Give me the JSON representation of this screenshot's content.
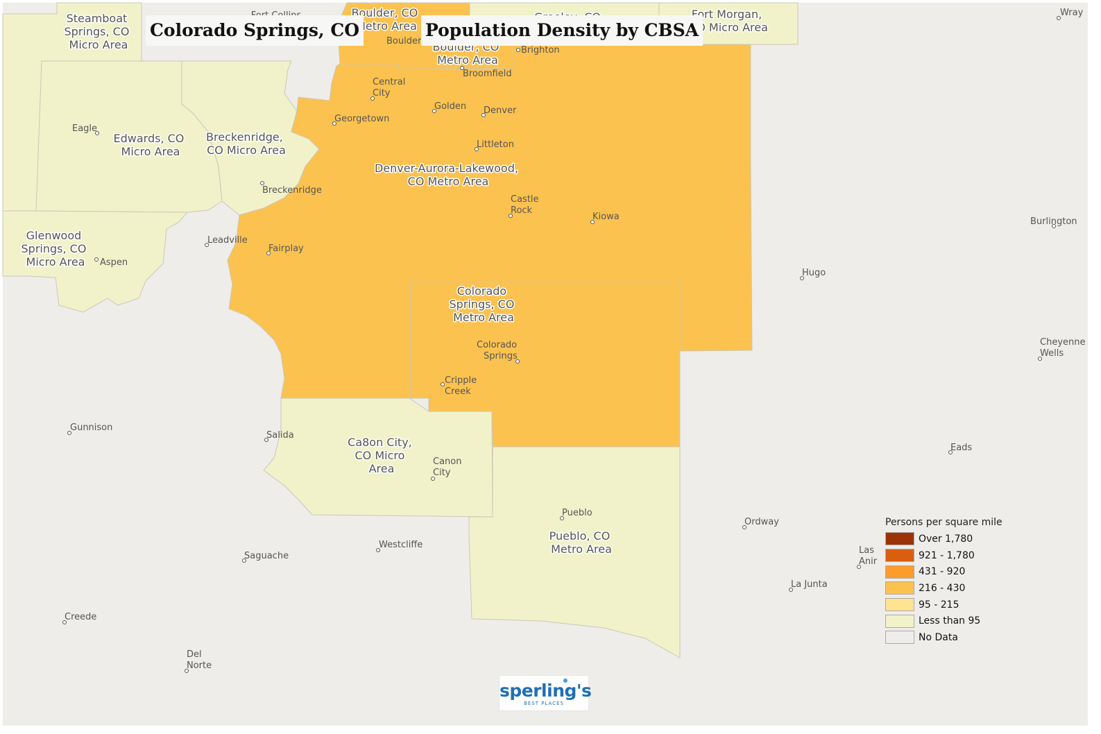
{
  "titles": {
    "location": "Colorado Springs, CO",
    "map_title": "Population Density by CBSA"
  },
  "colors": {
    "background": "#efedea",
    "no_data": "#efedea",
    "over_1780": "#9b3306",
    "c921_1780": "#d95f0e",
    "c431_920": "#fd9b2c",
    "c216_430": "#fcc24f",
    "c95_215": "#fee391",
    "less_than_95": "#f1f2ca"
  },
  "areas": {
    "steamboat": [
      "Steamboat",
      "Springs, CO",
      "Micro Area"
    ],
    "boulder_top": [
      "Boulder, CO",
      "Metro Area"
    ],
    "boulder_mid": [
      "Boulder, CO",
      "Metro Area"
    ],
    "fort_morgan": [
      "Fort Morgan,",
      "CO Micro Area"
    ],
    "edwards": [
      "Edwards, CO",
      "Micro Area"
    ],
    "breckenridge": [
      "Breckenridge,",
      "CO Micro Area"
    ],
    "denver": [
      "Denver-Aurora-Lakewood,",
      "CO Metro Area"
    ],
    "glenwood": [
      "Glenwood",
      "Springs, CO",
      "Micro Area"
    ],
    "colorado_springs": [
      "Colorado",
      "Springs, CO",
      "Metro Area"
    ],
    "canon_city": [
      "Ca8on City,",
      "CO Micro",
      "Area"
    ],
    "pueblo": [
      "Pueblo, CO",
      "Metro Area"
    ],
    "greeley_partial": [
      "Greeley, CO"
    ],
    "fort_collins_partial": [
      "Fort Collins"
    ]
  },
  "cities": {
    "wray": "Wray",
    "boulder": "Boulder",
    "brighton": "Brighton",
    "broomfield": "Broomfield",
    "central_city": [
      "Central",
      "City"
    ],
    "golden": "Golden",
    "denver": "Denver",
    "georgetown": "Georgetown",
    "eagle": "Eagle",
    "littleton": "Littleton",
    "breckenridge": "Breckenridge",
    "castle_rock": [
      "Castle",
      "Rock"
    ],
    "kiowa": "Kiowa",
    "burlington": "Burlington",
    "leadville": "Leadville",
    "fairplay": "Fairplay",
    "aspen": "Aspen",
    "hugo": "Hugo",
    "colorado_springs": [
      "Colorado",
      "Springs"
    ],
    "cheyenne_wells": [
      "Cheyenne",
      "Wells"
    ],
    "cripple_creek": [
      "Cripple",
      "Creek"
    ],
    "gunnison": "Gunnison",
    "salida": "Salida",
    "canon_city": [
      "Canon",
      "City"
    ],
    "eads": "Eads",
    "pueblo": "Pueblo",
    "ordway": "Ordway",
    "westcliffe": "Westcliffe",
    "saguache": "Saguache",
    "las_animas": [
      "Las",
      "Anir"
    ],
    "la_junta": "La Junta",
    "creede": "Creede",
    "del_norte": [
      "Del",
      "Norte"
    ]
  },
  "legend": {
    "title": "Persons per square mile",
    "items": [
      {
        "label": "Over 1,780",
        "color": "#9b3306"
      },
      {
        "label": "921 - 1,780",
        "color": "#d95f0e"
      },
      {
        "label": "431 - 920",
        "color": "#fd9b2c"
      },
      {
        "label": "216 - 430",
        "color": "#fcc24f"
      },
      {
        "label": "95 - 215",
        "color": "#fee391"
      },
      {
        "label": "Less than 95",
        "color": "#f1f2ca"
      },
      {
        "label": "No Data",
        "color": "#efedea"
      }
    ]
  },
  "logo": {
    "name": "sperling's",
    "tagline": "BEST PLACES"
  }
}
